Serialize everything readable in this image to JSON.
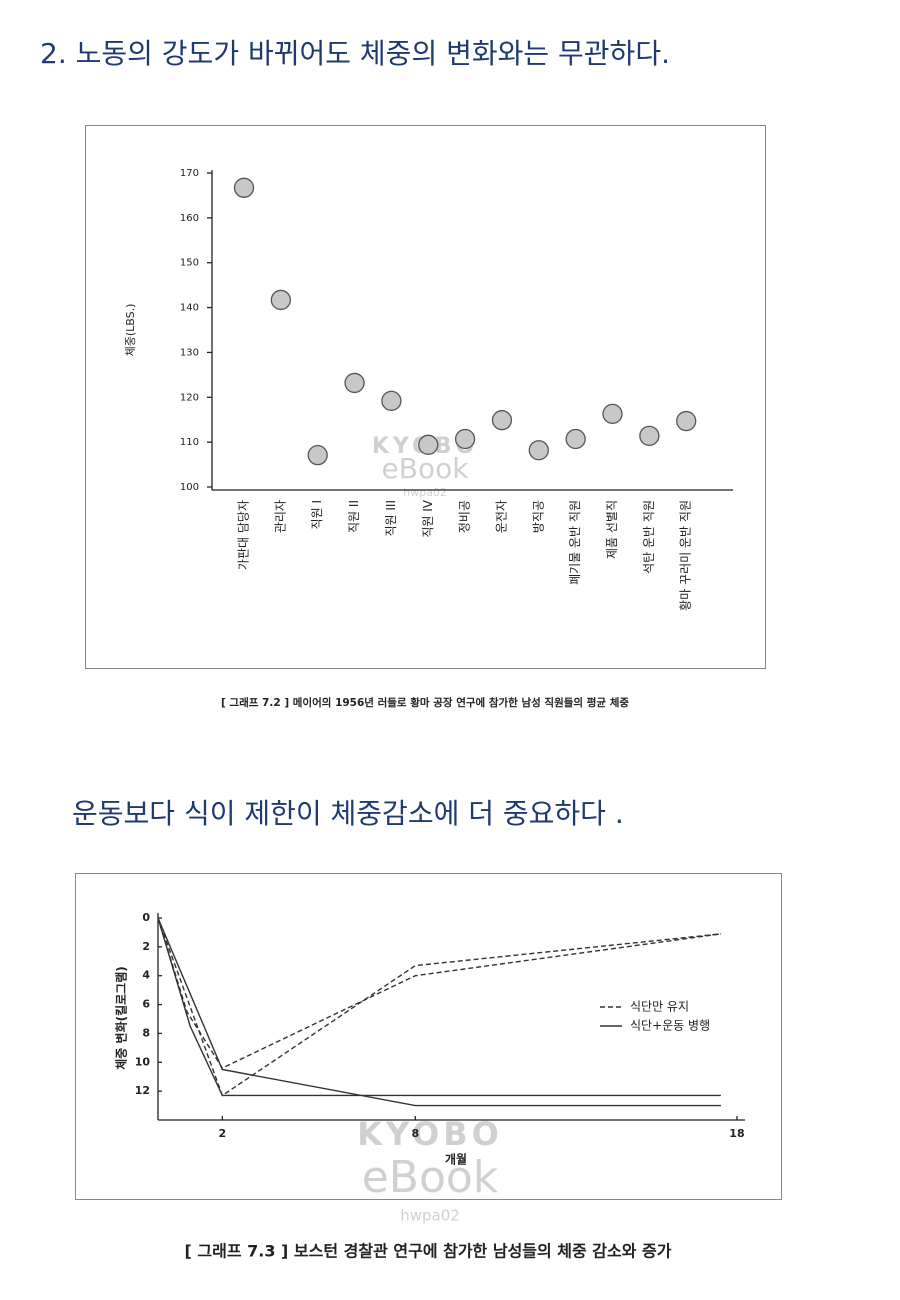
{
  "headings": [
    "2. 노동의 강도가 바뀌어도 체중의 변화와는 무관하다.",
    "운동보다 식이 제한이 체중감소에 더 중요하다 ."
  ],
  "watermark": {
    "brand": "KYOBO",
    "product": "eBook",
    "code": "hwpa02"
  },
  "chart_data": [
    {
      "type": "dot",
      "caption": "[ 그래프 7.2 ] 메이어의 1956년 러들로 황마 공장 연구에 참가한 남성 직원들의 평균 체중",
      "ylabel": "체중(LBS.)",
      "categories": [
        "가판대 담당자",
        "관리자",
        "직원 I",
        "직원 II",
        "직원 III",
        "직원 IV",
        "정비공",
        "운전자",
        "방직공",
        "폐기물 운반 직원",
        "제품 선별직",
        "석탄 운반 직원",
        "황마 꾸러미 운반 직원"
      ],
      "values": [
        166.7,
        141.7,
        107.1,
        123.2,
        119.2,
        109.4,
        110.7,
        114.9,
        108.2,
        110.7,
        116.3,
        111.4,
        114.7
      ],
      "color": "#c8c8c8",
      "ylim": [
        100,
        170
      ],
      "yticks": [
        100,
        110,
        120,
        130,
        140,
        150,
        160,
        170
      ]
    },
    {
      "type": "line",
      "caption": "[ 그래프 7.3 ] 보스턴 경찰관 연구에 참가한 남성들의 체중 감소와 증가",
      "xlabel": "개월",
      "ylabel": "체중 변화(킬로그램)",
      "legend": [
        "식단만 유지",
        "식단+운동 병행"
      ],
      "series": [
        {
          "legend_entry": 0,
          "dash": "dashed",
          "color": "#333333",
          "x": [
            0,
            0.9,
            2,
            8,
            17.5
          ],
          "values": [
            0,
            6.5,
            10.4,
            4,
            1.1
          ]
        },
        {
          "legend_entry": 0,
          "dash": "dashed",
          "color": "#333333",
          "x": [
            0,
            2,
            8,
            17.5
          ],
          "values": [
            0,
            12.3,
            3.3,
            1.1
          ]
        },
        {
          "legend_entry": 1,
          "dash": "solid",
          "color": "#333333",
          "x": [
            0,
            1,
            2,
            17.5
          ],
          "values": [
            0,
            7.5,
            12.3,
            12.3
          ]
        },
        {
          "legend_entry": 1,
          "dash": "solid",
          "color": "#333333",
          "x": [
            0,
            2,
            8,
            17.5
          ],
          "values": [
            0,
            10.5,
            13,
            13
          ]
        }
      ],
      "xlim": [
        0,
        18.25
      ],
      "xticks": [
        2,
        8,
        18
      ],
      "ylim": [
        0,
        14
      ],
      "yticks": [
        0,
        2,
        4,
        6,
        8,
        10,
        12
      ],
      "invert_y": true
    }
  ]
}
